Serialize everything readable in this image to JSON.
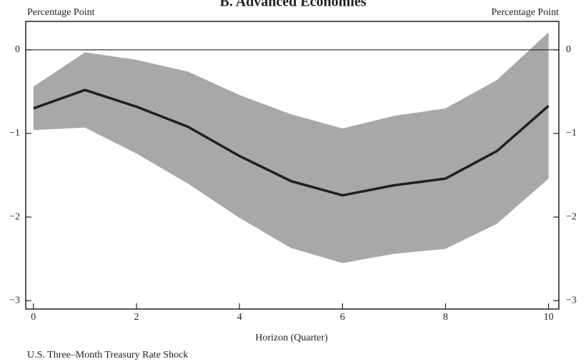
{
  "chart_data": {
    "type": "line",
    "title": "B. Advanced Economies",
    "ylabel": "Percentage Point",
    "y2label": "Percentage Point",
    "xlabel": "Horizon (Quarter)",
    "footnote": "U.S. Three–Month Treasury Rate Shock",
    "x": [
      0,
      1,
      2,
      3,
      4,
      5,
      6,
      7,
      8,
      9,
      10
    ],
    "values": [
      -0.7,
      -0.48,
      -0.68,
      -0.92,
      -1.27,
      -1.57,
      -1.74,
      -1.62,
      -1.54,
      -1.21,
      -0.67
    ],
    "color": "#231f20",
    "band": {
      "upper": [
        -0.44,
        -0.03,
        -0.12,
        -0.26,
        -0.54,
        -0.77,
        -0.94,
        -0.79,
        -0.7,
        -0.36,
        0.21
      ],
      "lower": [
        -0.96,
        -0.93,
        -1.24,
        -1.6,
        -2.01,
        -2.37,
        -2.55,
        -2.44,
        -2.38,
        -2.08,
        -1.54
      ],
      "color": "#a7a8aa"
    },
    "reference_line": 0,
    "xlim": [
      -0.15,
      10.2
    ],
    "ylim": [
      -3.1,
      0.34
    ],
    "y2lim": [
      -3.1,
      0.34
    ],
    "xticks": [
      0,
      2,
      4,
      6,
      8,
      10
    ],
    "yticks": [
      0,
      {
        "value": -1,
        "label": "−1"
      },
      {
        "value": -2,
        "label": "−2"
      },
      {
        "value": -3,
        "label": "−3"
      }
    ],
    "y2ticks": [
      0,
      {
        "value": -1,
        "label": "−1"
      },
      {
        "value": -2,
        "label": "−2"
      },
      {
        "value": -3,
        "label": "−3"
      }
    ]
  }
}
